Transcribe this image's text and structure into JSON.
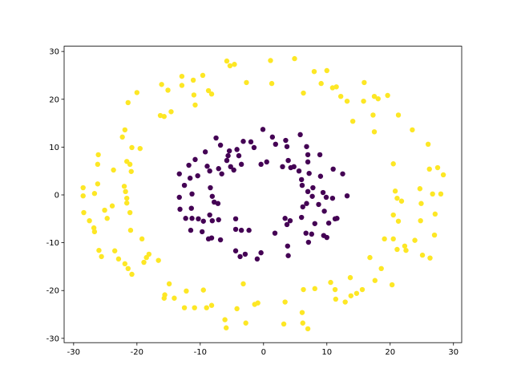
{
  "chart_data": {
    "type": "scatter",
    "title": "",
    "xlabel": "",
    "ylabel": "",
    "xlim": [
      -31.5,
      31.3
    ],
    "ylim": [
      -30.9,
      31.1
    ],
    "grid": false,
    "legend": "none",
    "x_ticks": [
      "-30",
      "-20",
      "-10",
      "0",
      "10",
      "20",
      "30"
    ],
    "x_tick_values": [
      -30,
      -20,
      -10,
      0,
      10,
      20,
      30
    ],
    "y_ticks": [
      "-30",
      "-20",
      "-10",
      "0",
      "10",
      "20",
      "30"
    ],
    "y_tick_values": [
      -30,
      -20,
      -10,
      0,
      10,
      20,
      30
    ],
    "series": [
      {
        "color": "#fde725",
        "points": [
          [
            -28.5,
            1.5
          ],
          [
            -28.5,
            -0.2
          ],
          [
            -28.4,
            -3.7
          ],
          [
            -27.5,
            -5.4
          ],
          [
            -26.8,
            -6.9
          ],
          [
            -26.7,
            -7.7
          ],
          [
            -26.7,
            0.3
          ],
          [
            -26.2,
            2.3
          ],
          [
            -26.1,
            8.4
          ],
          [
            -26.2,
            6.4
          ],
          [
            -26.0,
            -11.6
          ],
          [
            -25.6,
            -12.9
          ],
          [
            -25.1,
            -3.2
          ],
          [
            -24.7,
            -4.9
          ],
          [
            -23.9,
            -2.3
          ],
          [
            -23.7,
            5.2
          ],
          [
            -23.5,
            -11.7
          ],
          [
            -22.9,
            -13.4
          ],
          [
            -22.3,
            12.1
          ],
          [
            -21.6,
            7.0
          ],
          [
            -22.0,
            1.8
          ],
          [
            -21.8,
            0.7
          ],
          [
            -21.6,
            -0.7
          ],
          [
            -21.6,
            -1.7
          ],
          [
            -21.9,
            -14.4
          ],
          [
            -21.4,
            -15.4
          ],
          [
            -20.9,
            4.9
          ],
          [
            -20.8,
            9.9
          ],
          [
            -19.5,
            9.7
          ],
          [
            -21.1,
            6.4
          ],
          [
            -21.1,
            -3.7
          ],
          [
            -21.0,
            -7.4
          ],
          [
            -20.8,
            -16.6
          ],
          [
            -21.9,
            13.6
          ],
          [
            -21.4,
            19.3
          ],
          [
            -20.0,
            21.4
          ],
          [
            -19.2,
            -9.2
          ],
          [
            -18.5,
            -13.1
          ],
          [
            -18.9,
            -14.1
          ],
          [
            -18.1,
            -12.4
          ],
          [
            -16.6,
            -13.7
          ],
          [
            -16.3,
            16.6
          ],
          [
            -15.7,
            16.4
          ],
          [
            -16.1,
            23.1
          ],
          [
            -15.1,
            21.9
          ],
          [
            -14.6,
            17.4
          ],
          [
            -14.9,
            -18.6
          ],
          [
            -15.6,
            -20.9
          ],
          [
            -15.7,
            -21.6
          ],
          [
            -14.1,
            -21.6
          ],
          [
            -12.2,
            -20.1
          ],
          [
            -12.5,
            -23.6
          ],
          [
            -10.9,
            -23.6
          ],
          [
            -9.0,
            -23.6
          ],
          [
            -8.2,
            -23.1
          ],
          [
            -9.5,
            -19.9
          ],
          [
            -6.1,
            -26.1
          ],
          [
            -5.9,
            -27.8
          ],
          [
            -4.2,
            -23.8
          ],
          [
            -2.8,
            -26.8
          ],
          [
            -1.4,
            -22.9
          ],
          [
            -0.9,
            -22.6
          ],
          [
            -3.2,
            -18.6
          ],
          [
            -12.9,
            24.8
          ],
          [
            -11.1,
            24.0
          ],
          [
            -12.9,
            22.9
          ],
          [
            -11.0,
            20.9
          ],
          [
            -10.8,
            18.8
          ],
          [
            -9.6,
            25.0
          ],
          [
            -8.7,
            21.8
          ],
          [
            -8.2,
            21.1
          ],
          [
            -5.8,
            28.0
          ],
          [
            -5.3,
            27.0
          ],
          [
            -4.6,
            27.3
          ],
          [
            -2.7,
            23.5
          ],
          [
            1.1,
            28.1
          ],
          [
            1.3,
            23.3
          ],
          [
            3.2,
            -27.0
          ],
          [
            3.4,
            -22.4
          ],
          [
            4.9,
            28.5
          ],
          [
            6.1,
            -24.6
          ],
          [
            6.2,
            -26.8
          ],
          [
            6.3,
            -19.8
          ],
          [
            7.0,
            -28.0
          ],
          [
            6.3,
            21.3
          ],
          [
            8.1,
            -19.6
          ],
          [
            8.0,
            25.8
          ],
          [
            9.1,
            23.3
          ],
          [
            10.9,
            22.4
          ],
          [
            10.0,
            26.0
          ],
          [
            11.5,
            22.6
          ],
          [
            11.4,
            -21.8
          ],
          [
            10.6,
            -18.3
          ],
          [
            11.3,
            -19.8
          ],
          [
            12.2,
            20.6
          ],
          [
            13.2,
            19.6
          ],
          [
            12.9,
            -22.4
          ],
          [
            13.8,
            -21.1
          ],
          [
            13.7,
            -17.3
          ],
          [
            14.1,
            15.4
          ],
          [
            14.7,
            -20.6
          ],
          [
            15.6,
            -19.8
          ],
          [
            15.9,
            23.5
          ],
          [
            15.8,
            19.6
          ],
          [
            17.5,
            20.6
          ],
          [
            18.1,
            20.1
          ],
          [
            19.6,
            20.8
          ],
          [
            17.3,
            16.7
          ],
          [
            17.5,
            13.2
          ],
          [
            16.8,
            -13.1
          ],
          [
            18.6,
            -15.4
          ],
          [
            17.6,
            -17.9
          ],
          [
            19.1,
            -9.2
          ],
          [
            20.3,
            -18.8
          ],
          [
            21.3,
            16.7
          ],
          [
            20.5,
            6.5
          ],
          [
            20.8,
            0.8
          ],
          [
            21.1,
            -0.7
          ],
          [
            20.5,
            -4.2
          ],
          [
            21.3,
            -5.5
          ],
          [
            21.1,
            -11.4
          ],
          [
            22.5,
            -11.6
          ],
          [
            21.8,
            -1.3
          ],
          [
            23.5,
            13.6
          ],
          [
            23.9,
            -9.5
          ],
          [
            24.8,
            -5.4
          ],
          [
            24.7,
            1.3
          ],
          [
            24.9,
            -1.8
          ],
          [
            25.1,
            -12.6
          ],
          [
            26.0,
            10.6
          ],
          [
            26.2,
            5.4
          ],
          [
            26.3,
            -13.2
          ],
          [
            26.7,
            0.2
          ],
          [
            27.1,
            -4.0
          ],
          [
            27.0,
            -8.4
          ],
          [
            27.5,
            5.7
          ],
          [
            28.0,
            0.2
          ],
          [
            28.4,
            4.2
          ],
          [
            20.5,
            -9.2
          ],
          [
            22.3,
            -10.7
          ]
        ]
      },
      {
        "color": "#440154",
        "points": [
          [
            -13.3,
            4.4
          ],
          [
            -13.3,
            -0.5
          ],
          [
            -13.2,
            -3.0
          ],
          [
            -12.5,
            2.0
          ],
          [
            -11.8,
            6.2
          ],
          [
            -11.6,
            3.5
          ],
          [
            -11.3,
            0.2
          ],
          [
            -11.4,
            -2.8
          ],
          [
            -12.3,
            -4.9
          ],
          [
            -11.3,
            -4.9
          ],
          [
            -11.5,
            -7.4
          ],
          [
            -10.8,
            7.4
          ],
          [
            -10.4,
            4.0
          ],
          [
            -10.3,
            -5.0
          ],
          [
            -9.7,
            -7.7
          ],
          [
            -9.5,
            -5.5
          ],
          [
            -9.2,
            9.0
          ],
          [
            -8.9,
            6.0
          ],
          [
            -8.7,
            -9.2
          ],
          [
            -8.5,
            -4.2
          ],
          [
            -8.2,
            -9.0
          ],
          [
            -8.1,
            -5.4
          ],
          [
            -8.5,
            5.0
          ],
          [
            -8.4,
            1.5
          ],
          [
            -8.1,
            -0.3
          ],
          [
            -7.8,
            -1.5
          ],
          [
            -7.5,
            11.9
          ],
          [
            -7.2,
            -1.8
          ],
          [
            -7.1,
            5.5
          ],
          [
            -7.1,
            -5.2
          ],
          [
            -6.8,
            10.4
          ],
          [
            -6.8,
            -9.4
          ],
          [
            -6.6,
            4.4
          ],
          [
            -5.8,
            7.2
          ],
          [
            -5.6,
            8.2
          ],
          [
            -5.4,
            9.2
          ],
          [
            -5.2,
            5.9
          ],
          [
            -4.7,
            5.2
          ],
          [
            -4.4,
            -11.7
          ],
          [
            -4.4,
            -7.2
          ],
          [
            -4.4,
            -5.0
          ],
          [
            -4.2,
            9.5
          ],
          [
            -3.9,
            8.2
          ],
          [
            -3.7,
            -12.9
          ],
          [
            -3.5,
            6.4
          ],
          [
            -3.5,
            -7.4
          ],
          [
            -3.2,
            11.2
          ],
          [
            -2.9,
            -12.4
          ],
          [
            -2.3,
            -7.4
          ],
          [
            -2.0,
            11.1
          ],
          [
            -1.5,
            9.9
          ],
          [
            -1.0,
            -13.4
          ],
          [
            -0.4,
            -12.1
          ],
          [
            -0.1,
            13.7
          ],
          [
            -0.4,
            6.4
          ],
          [
            0.5,
            6.9
          ],
          [
            1.8,
            -8.0
          ],
          [
            1.9,
            10.6
          ],
          [
            1.4,
            12.1
          ],
          [
            3.0,
            5.9
          ],
          [
            3.7,
            10.1
          ],
          [
            3.7,
            -6.2
          ],
          [
            3.9,
            7.2
          ],
          [
            3.8,
            -10.7
          ],
          [
            3.9,
            -12.7
          ],
          [
            3.4,
            -4.9
          ],
          [
            4.2,
            -5.4
          ],
          [
            3.5,
            11.4
          ],
          [
            4.3,
            5.7
          ],
          [
            4.8,
            5.9
          ],
          [
            5.8,
            12.6
          ],
          [
            5.6,
            5.0
          ],
          [
            6.0,
            3.2
          ],
          [
            6.1,
            2.0
          ],
          [
            6.0,
            -4.7
          ],
          [
            6.2,
            -2.5
          ],
          [
            6.8,
            10.1
          ],
          [
            7.0,
            8.4
          ],
          [
            7.0,
            6.9
          ],
          [
            7.2,
            4.5
          ],
          [
            7.0,
            0.7
          ],
          [
            6.8,
            -1.8
          ],
          [
            7.1,
            -9.9
          ],
          [
            7.6,
            -8.2
          ],
          [
            6.7,
            -8.0
          ],
          [
            7.7,
            -0.3
          ],
          [
            7.8,
            1.5
          ],
          [
            8.1,
            -6.0
          ],
          [
            8.9,
            8.4
          ],
          [
            8.7,
            -2.0
          ],
          [
            9.0,
            3.9
          ],
          [
            9.4,
            0.5
          ],
          [
            9.5,
            -8.5
          ],
          [
            9.6,
            -3.4
          ],
          [
            10.0,
            -8.9
          ],
          [
            9.9,
            -0.5
          ],
          [
            10.9,
            -0.7
          ],
          [
            11.3,
            -5.0
          ],
          [
            11.0,
            5.4
          ],
          [
            12.5,
            4.4
          ],
          [
            13.2,
            -0.2
          ],
          [
            11.6,
            -4.9
          ],
          [
            10.3,
            -5.9
          ]
        ]
      }
    ]
  }
}
